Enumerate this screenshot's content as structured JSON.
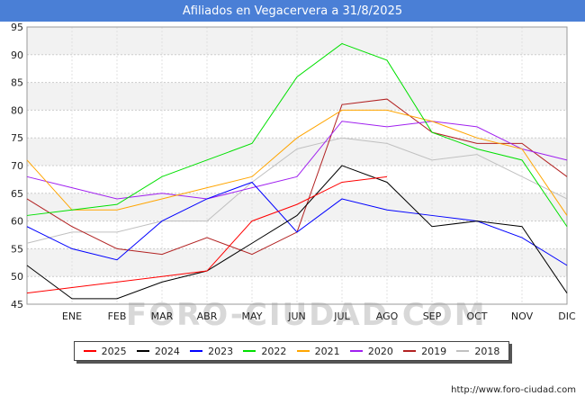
{
  "chart_data": {
    "type": "line",
    "title": "Afiliados en Vegacervera a 31/8/2025",
    "categories": [
      "",
      "ENE",
      "FEB",
      "MAR",
      "ABR",
      "MAY",
      "JUN",
      "JUL",
      "AGO",
      "SEP",
      "OCT",
      "NOV",
      "DIC"
    ],
    "xlabel": "",
    "ylabel": "",
    "ylim": [
      45,
      95
    ],
    "yticks": [
      45,
      50,
      55,
      60,
      65,
      70,
      75,
      80,
      85,
      90,
      95
    ],
    "grid": "horizontal",
    "legend_position": "bottom",
    "series": [
      {
        "name": "2025",
        "color": "#ff0000",
        "values": [
          47,
          48,
          49,
          50,
          51,
          60,
          63,
          67,
          68,
          null,
          null,
          null,
          null
        ]
      },
      {
        "name": "2024",
        "color": "#000000",
        "values": [
          52,
          46,
          46,
          49,
          51,
          56,
          61,
          70,
          67,
          59,
          60,
          59,
          47
        ]
      },
      {
        "name": "2023",
        "color": "#0000ff",
        "values": [
          59,
          55,
          53,
          60,
          64,
          67,
          58,
          64,
          62,
          61,
          60,
          57,
          52
        ]
      },
      {
        "name": "2022",
        "color": "#00e000",
        "values": [
          61,
          62,
          63,
          68,
          71,
          74,
          86,
          92,
          89,
          76,
          73,
          71,
          59
        ]
      },
      {
        "name": "2021",
        "color": "#ffa500",
        "values": [
          71,
          62,
          62,
          64,
          66,
          68,
          75,
          80,
          80,
          78,
          75,
          73,
          61
        ]
      },
      {
        "name": "2020",
        "color": "#a020f0",
        "values": [
          68,
          66,
          64,
          65,
          64,
          66,
          68,
          78,
          77,
          78,
          77,
          73,
          71
        ]
      },
      {
        "name": "2019",
        "color": "#b22222",
        "values": [
          64,
          59,
          55,
          54,
          57,
          54,
          58,
          81,
          82,
          76,
          74,
          74,
          68
        ]
      },
      {
        "name": "2018",
        "color": "#c0c0c0",
        "values": [
          56,
          58,
          58,
          60,
          60,
          67,
          73,
          75,
          74,
          71,
          72,
          68,
          64
        ]
      }
    ]
  },
  "footer": {
    "source": "http://www.foro-ciudad.com",
    "watermark": "FORO-CIUDAD.COM"
  }
}
